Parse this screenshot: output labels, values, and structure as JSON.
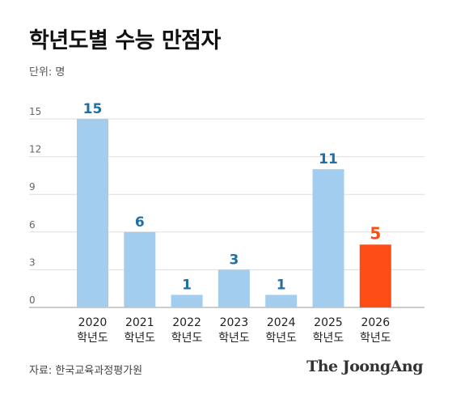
{
  "header": {
    "title": "학년도별 수능 만점자",
    "unit": "단위: 명"
  },
  "footer": {
    "source": "자료: 한국교육과정평가원",
    "brand": "The JoongAng"
  },
  "colors": {
    "bar": "#a3cdee",
    "highlight_bar": "#fc4d14",
    "value_label": "#1d6fa5",
    "highlight_label": "#fc4d14",
    "grid": "#dddddd"
  },
  "chart_data": {
    "type": "bar",
    "title": "학년도별 수능 만점자",
    "ylabel": "단위: 명",
    "categories": [
      "2020",
      "2021",
      "2022",
      "2023",
      "2024",
      "2025",
      "2026"
    ],
    "category_suffix": "학년도",
    "values": [
      15,
      6,
      1,
      3,
      1,
      11,
      5
    ],
    "highlight_index": 6,
    "ylim": [
      0,
      15
    ],
    "yticks": [
      0,
      3,
      6,
      9,
      12,
      15
    ],
    "grid": true,
    "legend": "none"
  }
}
